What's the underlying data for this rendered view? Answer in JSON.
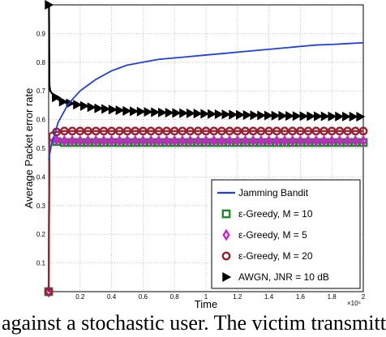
{
  "caption_fragment": "against a stochastic user. The victim transmitt",
  "chart_data": {
    "type": "line",
    "xlabel": "Time",
    "ylabel": "Average Packet error rate",
    "x_multiplier_label": "×10⁵",
    "xlim": [
      0,
      2
    ],
    "ylim": [
      0,
      1
    ],
    "x_ticks": [
      "0.2",
      "0.4",
      "0.6",
      "0.8",
      "1",
      "1.2",
      "1.4",
      "1.6",
      "1.8",
      "2"
    ],
    "y_ticks": [
      "0.1",
      "0.2",
      "0.3",
      "0.4",
      "0.5",
      "0.6",
      "0.7",
      "0.8",
      "0.9"
    ],
    "grid": true,
    "legend_position": "bottom-right",
    "series": [
      {
        "name": "Jamming Bandit",
        "color": "#1f3fe0",
        "marker": "none",
        "x": [
          0,
          0.01,
          0.02,
          0.04,
          0.06,
          0.08,
          0.1,
          0.12,
          0.15,
          0.2,
          0.25,
          0.3,
          0.35,
          0.4,
          0.45,
          0.5,
          0.6,
          0.7,
          0.8,
          0.9,
          1.0,
          1.1,
          1.2,
          1.3,
          1.4,
          1.5,
          1.6,
          1.7,
          1.8,
          1.9,
          2.0
        ],
        "y": [
          0.46,
          0.49,
          0.52,
          0.55,
          0.59,
          0.61,
          0.63,
          0.65,
          0.67,
          0.7,
          0.72,
          0.74,
          0.755,
          0.77,
          0.78,
          0.79,
          0.8,
          0.81,
          0.815,
          0.82,
          0.825,
          0.83,
          0.835,
          0.84,
          0.845,
          0.85,
          0.855,
          0.86,
          0.862,
          0.865,
          0.868
        ]
      },
      {
        "name": "ε-Greedy, M = 10",
        "color": "#1e8a2a",
        "marker": "square",
        "x": [
          0,
          0.005,
          0.02,
          0.1,
          0.5,
          1.0,
          1.5,
          2.0
        ],
        "y": [
          0.0,
          0.53,
          0.525,
          0.52,
          0.52,
          0.52,
          0.52,
          0.52
        ]
      },
      {
        "name": "ε-Greedy, M = 5",
        "color": "#d020d0",
        "marker": "diamond",
        "x": [
          0,
          0.005,
          0.02,
          0.1,
          0.5,
          1.0,
          1.5,
          2.0
        ],
        "y": [
          0.0,
          0.53,
          0.53,
          0.525,
          0.525,
          0.525,
          0.525,
          0.525
        ]
      },
      {
        "name": "ε-Greedy, M = 20",
        "color": "#9a1f2f",
        "marker": "circle",
        "x": [
          0,
          0.005,
          0.02,
          0.1,
          0.5,
          1.0,
          1.5,
          2.0
        ],
        "y": [
          0.0,
          0.55,
          0.555,
          0.56,
          0.56,
          0.56,
          0.56,
          0.56
        ]
      },
      {
        "name": "AWGN, JNR = 10 dB",
        "color": "#000000",
        "marker": "triangle-right",
        "x": [
          0,
          0.002,
          0.005,
          0.01,
          0.03,
          0.06,
          0.1,
          0.15,
          0.2,
          0.3,
          0.4,
          0.5,
          0.7,
          1.0,
          1.3,
          1.6,
          2.0
        ],
        "y": [
          1.0,
          1.0,
          0.72,
          0.7,
          0.685,
          0.67,
          0.66,
          0.655,
          0.65,
          0.64,
          0.635,
          0.63,
          0.625,
          0.62,
          0.615,
          0.612,
          0.61
        ]
      }
    ]
  }
}
